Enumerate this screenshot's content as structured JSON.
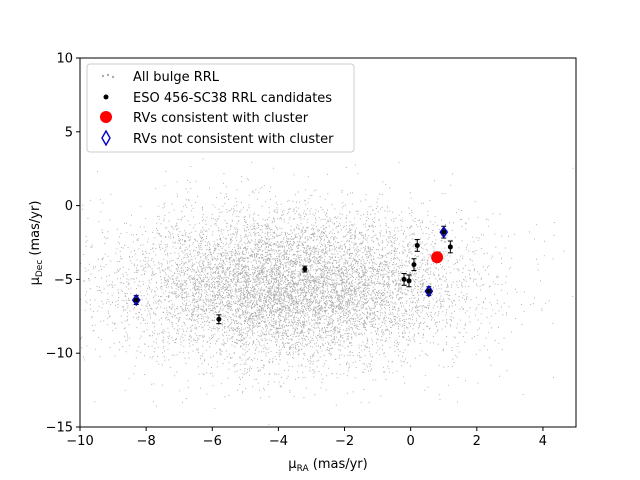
{
  "chart_data": {
    "type": "scatter",
    "xlabel_main": "μ",
    "xlabel_sub": "RA",
    "xlabel_unit": " (mas/yr)",
    "ylabel_main": "μ",
    "ylabel_sub": "Dec",
    "ylabel_unit": " (mas/yr)",
    "xlim": [
      -10,
      5
    ],
    "ylim": [
      -15,
      10
    ],
    "xticks": [
      -10,
      -8,
      -6,
      -4,
      -2,
      0,
      2,
      4
    ],
    "xtick_labels": [
      "−10",
      "−8",
      "−6",
      "−4",
      "−2",
      "0",
      "2",
      "4"
    ],
    "yticks": [
      -15,
      -10,
      -5,
      0,
      5,
      10
    ],
    "ytick_labels": [
      "−15",
      "−10",
      "−5",
      "0",
      "5",
      "10"
    ],
    "grid": false,
    "legend_placement": "top-left",
    "background_cloud": {
      "name": "All bulge RRL",
      "color": "#aaaaaa",
      "approx_center": [
        -3.6,
        -5.5
      ],
      "approx_spread": [
        2.6,
        2.6
      ]
    },
    "series": [
      {
        "name": "ESO 456-SC38 RRL candidates",
        "color": "#000000",
        "marker": "dot",
        "points": [
          {
            "x": -5.8,
            "y": -7.7,
            "yerr": 0.3
          },
          {
            "x": -3.2,
            "y": -4.3,
            "yerr": 0.2
          },
          {
            "x": -0.2,
            "y": -5.0,
            "yerr": 0.4
          },
          {
            "x": -0.05,
            "y": -5.1,
            "yerr": 0.4
          },
          {
            "x": 0.1,
            "y": -4.0,
            "yerr": 0.4
          },
          {
            "x": 0.2,
            "y": -2.7,
            "yerr": 0.4
          },
          {
            "x": 0.55,
            "y": -5.8,
            "yerr": 0.3
          },
          {
            "x": 1.0,
            "y": -1.8,
            "yerr": 0.4
          },
          {
            "x": 1.2,
            "y": -2.8,
            "yerr": 0.4
          },
          {
            "x": -8.3,
            "y": -6.4,
            "yerr": 0.3
          }
        ]
      },
      {
        "name": "RVs consistent with cluster",
        "color": "#ff0000",
        "marker": "circle",
        "points": [
          {
            "x": 0.8,
            "y": -3.5
          }
        ]
      },
      {
        "name": "RVs not consistent with cluster",
        "color": "#0000cc",
        "marker": "open-diamond",
        "points": [
          {
            "x": -8.3,
            "y": -6.4
          },
          {
            "x": 0.55,
            "y": -5.8
          },
          {
            "x": 1.0,
            "y": -1.8
          }
        ]
      }
    ]
  }
}
